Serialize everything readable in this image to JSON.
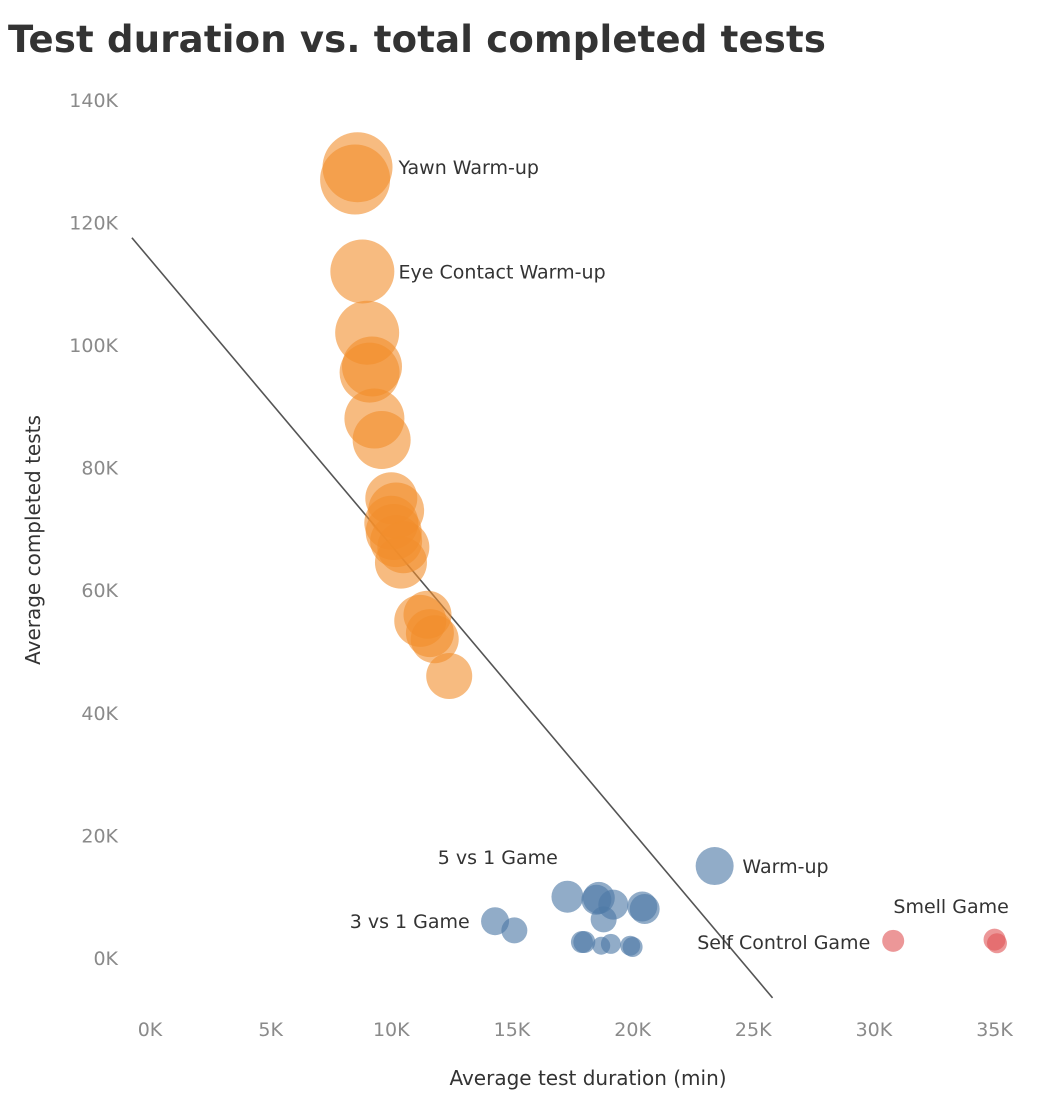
{
  "chart_data": {
    "type": "scatter",
    "title": "Test duration vs. total completed tests",
    "xlabel": "Average test duration (min)",
    "ylabel": "Average completed tests",
    "xlim": [
      0,
      35000
    ],
    "ylim": [
      -6000,
      140000
    ],
    "x_ticks": [
      "0K",
      "5K",
      "10K",
      "15K",
      "20K",
      "25K",
      "30K",
      "35K"
    ],
    "y_ticks": [
      "0K",
      "20K",
      "40K",
      "60K",
      "80K",
      "100K",
      "120K",
      "140K"
    ],
    "grid": false,
    "colors": {
      "warmup": "#f28e2b",
      "game": "#4e79a7",
      "smell": "#e15759",
      "trend": "#555555"
    },
    "trend_line": {
      "x": [
        -750,
        25800
      ],
      "y": [
        117500,
        -6500
      ]
    },
    "series": [
      {
        "group": "warmup",
        "points": [
          {
            "x": 8600,
            "y": 129000,
            "size": 35
          },
          {
            "x": 8500,
            "y": 127000,
            "size": 35
          },
          {
            "x": 8800,
            "y": 112000,
            "size": 32
          },
          {
            "x": 9000,
            "y": 102000,
            "size": 32
          },
          {
            "x": 9200,
            "y": 96500,
            "size": 30
          },
          {
            "x": 9100,
            "y": 95500,
            "size": 30
          },
          {
            "x": 9300,
            "y": 88000,
            "size": 30
          },
          {
            "x": 9600,
            "y": 84500,
            "size": 29
          },
          {
            "x": 10000,
            "y": 75000,
            "size": 26
          },
          {
            "x": 10200,
            "y": 73000,
            "size": 28
          },
          {
            "x": 10000,
            "y": 71000,
            "size": 27
          },
          {
            "x": 10100,
            "y": 69500,
            "size": 28
          },
          {
            "x": 10200,
            "y": 68000,
            "size": 26
          },
          {
            "x": 10500,
            "y": 67000,
            "size": 26
          },
          {
            "x": 10400,
            "y": 64500,
            "size": 26
          },
          {
            "x": 11500,
            "y": 56000,
            "size": 24
          },
          {
            "x": 11200,
            "y": 55000,
            "size": 26
          },
          {
            "x": 11600,
            "y": 53000,
            "size": 24
          },
          {
            "x": 11800,
            "y": 52000,
            "size": 24
          },
          {
            "x": 12400,
            "y": 46000,
            "size": 23
          }
        ]
      },
      {
        "group": "game",
        "points": [
          {
            "x": 23400,
            "y": 15000,
            "size": 19
          },
          {
            "x": 17300,
            "y": 10000,
            "size": 16
          },
          {
            "x": 18600,
            "y": 9800,
            "size": 16
          },
          {
            "x": 18500,
            "y": 9500,
            "size": 15
          },
          {
            "x": 19200,
            "y": 8700,
            "size": 15
          },
          {
            "x": 20400,
            "y": 8400,
            "size": 15
          },
          {
            "x": 20500,
            "y": 8000,
            "size": 15
          },
          {
            "x": 18800,
            "y": 6300,
            "size": 13
          },
          {
            "x": 14300,
            "y": 6000,
            "size": 14
          },
          {
            "x": 15100,
            "y": 4500,
            "size": 13
          },
          {
            "x": 17900,
            "y": 2600,
            "size": 11
          },
          {
            "x": 18000,
            "y": 2600,
            "size": 11
          },
          {
            "x": 19100,
            "y": 2300,
            "size": 10
          },
          {
            "x": 18700,
            "y": 2000,
            "size": 9
          },
          {
            "x": 19900,
            "y": 2000,
            "size": 10
          },
          {
            "x": 20000,
            "y": 1800,
            "size": 10
          }
        ]
      },
      {
        "group": "smell",
        "points": [
          {
            "x": 30800,
            "y": 2800,
            "size": 11
          },
          {
            "x": 35000,
            "y": 3000,
            "size": 11
          },
          {
            "x": 35100,
            "y": 2400,
            "size": 10
          }
        ]
      }
    ],
    "annotations": [
      {
        "text": "Yawn Warm-up",
        "x": 10300,
        "y": 129000,
        "anchor": "start"
      },
      {
        "text": "Eye Contact Warm-up",
        "x": 10300,
        "y": 112000,
        "anchor": "start"
      },
      {
        "text": "5 vs 1 Game",
        "x": 16900,
        "y": 16500,
        "anchor": "end"
      },
      {
        "text": "Warm-up",
        "x": 24550,
        "y": 15000,
        "anchor": "start"
      },
      {
        "text": "3 vs 1 Game",
        "x": 13250,
        "y": 6000,
        "anchor": "end"
      },
      {
        "text": "Smell Game",
        "x": 33200,
        "y": 8500,
        "anchor": "middle"
      },
      {
        "text": "Self Control Game",
        "x": 29850,
        "y": 2600,
        "anchor": "end"
      }
    ]
  }
}
